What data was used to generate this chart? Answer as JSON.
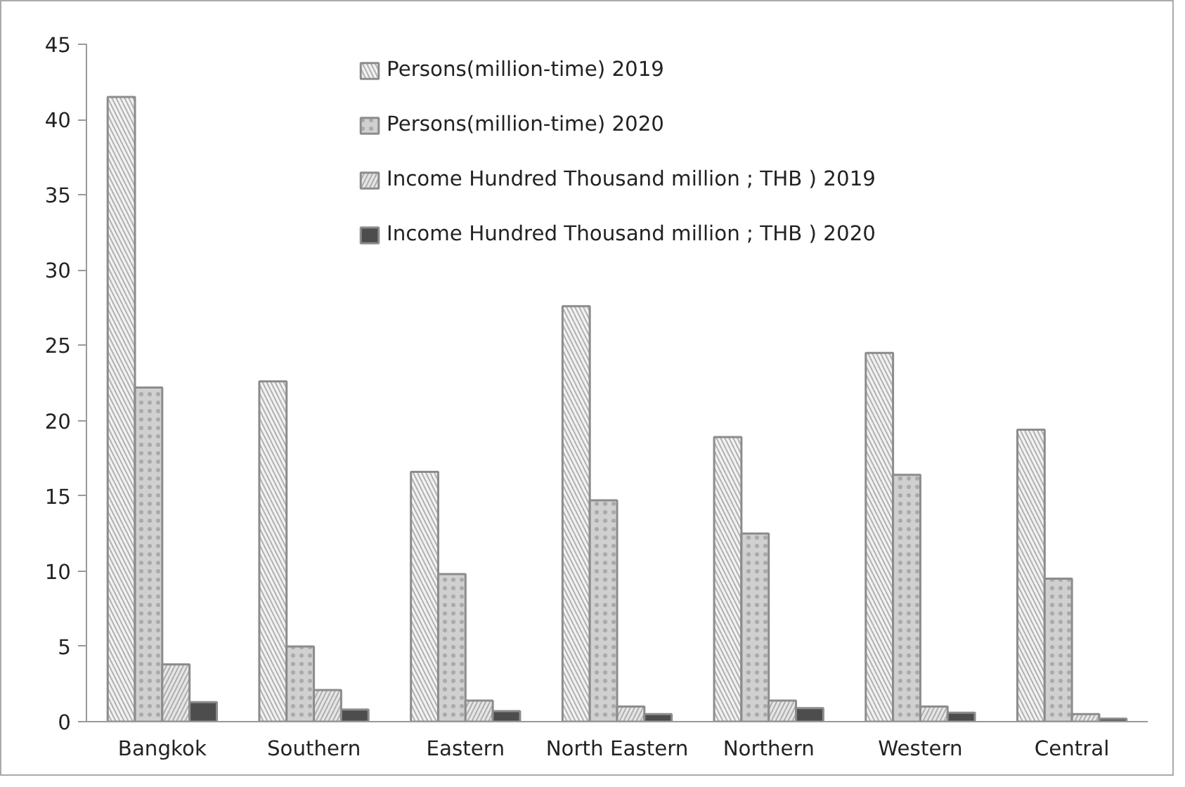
{
  "chart_data": {
    "type": "bar",
    "categories": [
      "Bangkok",
      "Southern",
      "Eastern",
      "North Eastern",
      "Northern",
      "Western",
      "Central"
    ],
    "series": [
      {
        "name": "Persons(million-time) 2019",
        "color": "#f2f2f2",
        "values": [
          41.5,
          22.6,
          16.6,
          27.6,
          18.9,
          24.5,
          19.4
        ]
      },
      {
        "name": "Persons(million-time) 2020",
        "color": "#d0d0d0",
        "values": [
          22.2,
          5.0,
          9.8,
          14.7,
          12.5,
          16.4,
          9.5
        ]
      },
      {
        "name": "Income Hundred Thousand million ; THB ) 2019",
        "color": "#e6e6e6",
        "values": [
          3.8,
          2.1,
          1.4,
          1.0,
          1.4,
          1.0,
          0.5
        ]
      },
      {
        "name": "Income Hundred Thousand million ; THB ) 2020",
        "color": "#4d4d4d",
        "values": [
          1.3,
          0.8,
          0.7,
          0.5,
          0.9,
          0.6,
          0.2
        ]
      }
    ],
    "ylim": [
      0,
      45
    ],
    "yticks": [
      0,
      5,
      10,
      15,
      20,
      25,
      30,
      35,
      40,
      45
    ],
    "grid": false,
    "legend": "top"
  }
}
